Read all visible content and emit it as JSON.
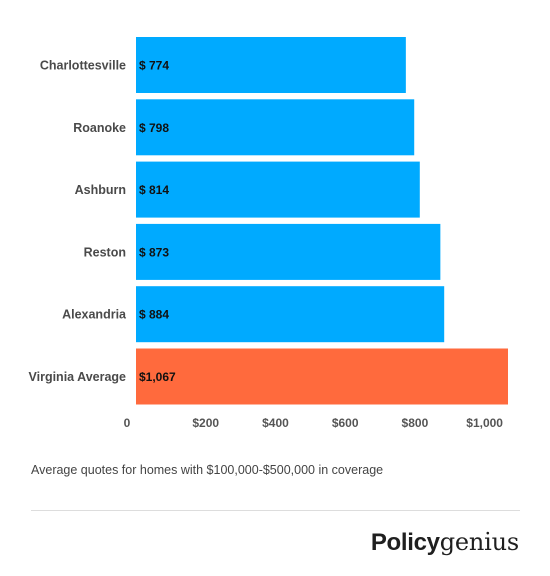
{
  "chart_data": {
    "type": "bar",
    "orientation": "horizontal",
    "categories": [
      "Charlottesville",
      "Roanoke",
      "Ashburn",
      "Reston",
      "Alexandria",
      "Virginia Average"
    ],
    "values": [
      774,
      798,
      814,
      873,
      884,
      1067
    ],
    "data_labels": [
      "$ 774",
      "$ 798",
      "$ 814",
      "$ 873",
      "$ 884",
      "$1,067"
    ],
    "bar_colors": [
      "#00aaff",
      "#00aaff",
      "#00aaff",
      "#00aaff",
      "#00aaff",
      "#ff6a3d"
    ],
    "xticks": [
      0,
      200,
      400,
      600,
      800,
      1000
    ],
    "xtick_labels": [
      "0",
      "$200",
      "$400",
      "$600",
      "$800",
      "$1,000"
    ],
    "xlim": [
      0,
      1100
    ],
    "grid": false,
    "title": "",
    "xlabel": "",
    "ylabel": ""
  },
  "caption": "Average quotes for homes with $100,000-$500,000 in coverage",
  "brand": {
    "part1": "Policy",
    "part2": "genius"
  }
}
